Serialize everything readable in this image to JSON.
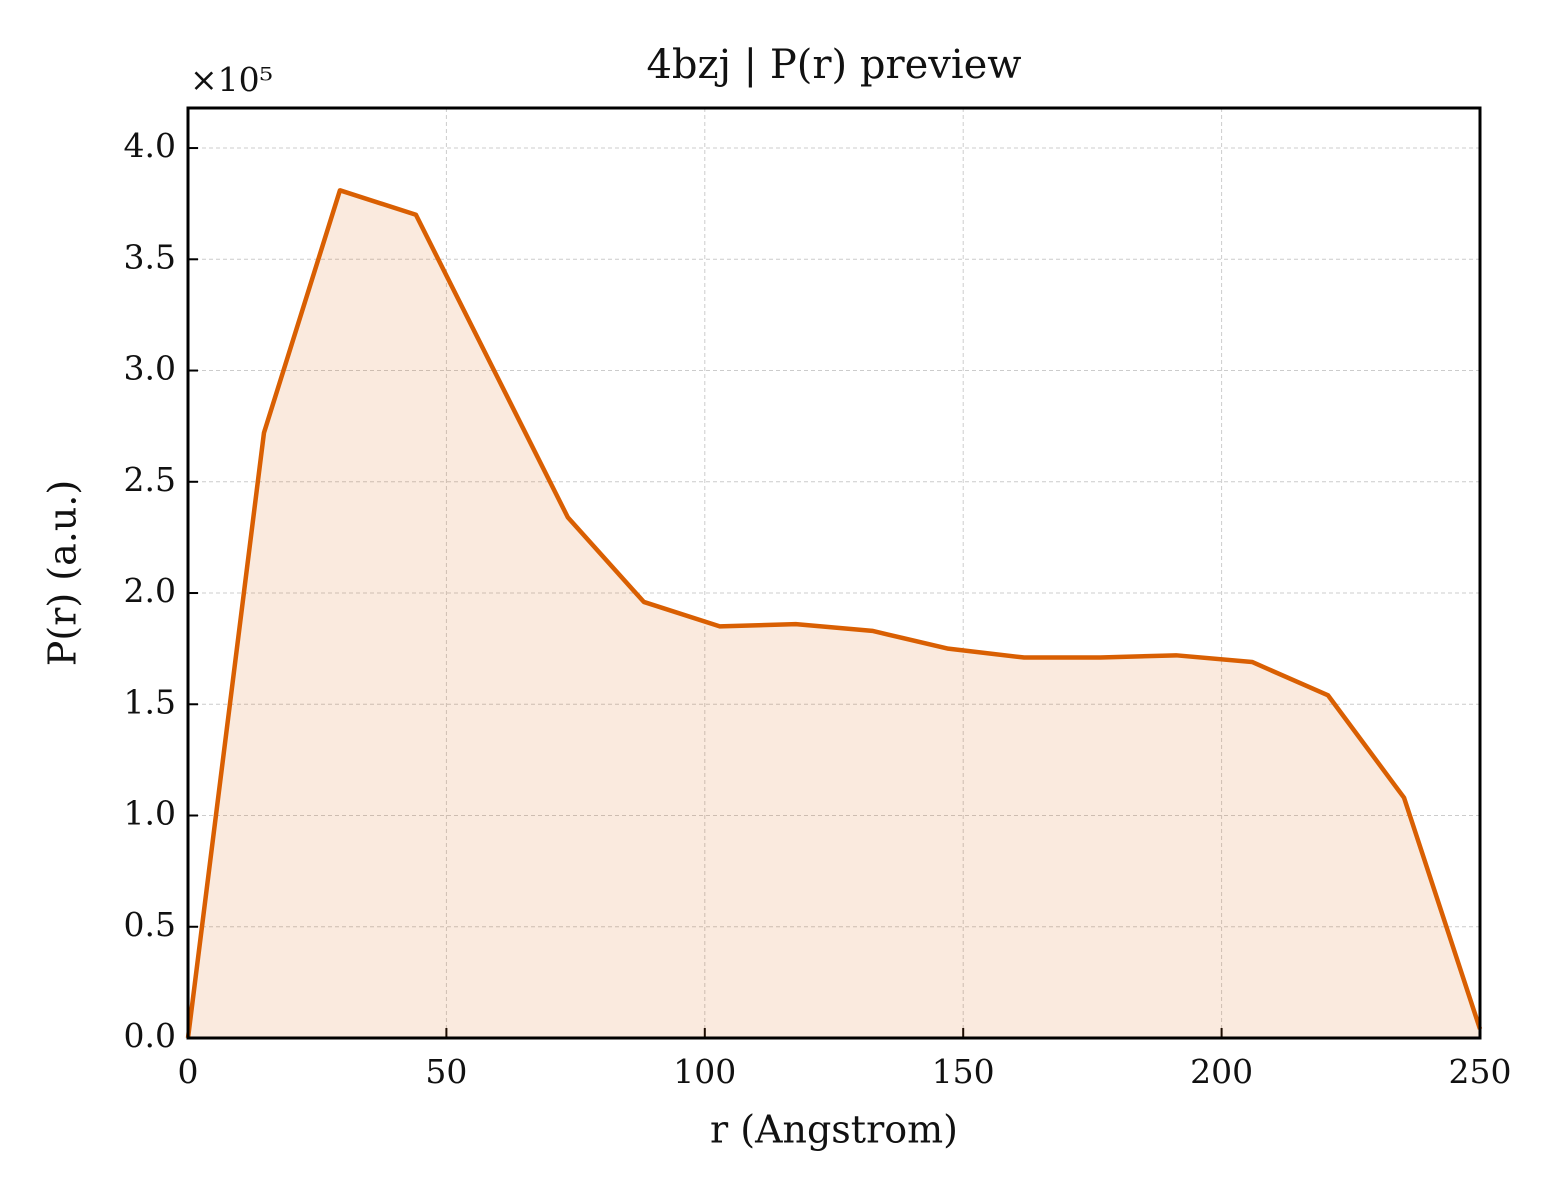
{
  "chart_data": {
    "type": "line",
    "title": "4bzj | P(r) preview",
    "xlabel": "r (Angstrom)",
    "ylabel": "P(r) (a.u.)",
    "y_offset_label": "×10⁵",
    "x": [
      0,
      14.7,
      29.4,
      44.1,
      58.8,
      73.5,
      88.2,
      102.9,
      117.6,
      132.4,
      147.1,
      161.8,
      176.5,
      191.2,
      205.9,
      220.6,
      235.3,
      250
    ],
    "series": [
      {
        "color": "#d95f02",
        "values": [
          0,
          2.72,
          3.81,
          3.7,
          3.02,
          2.34,
          1.96,
          1.85,
          1.86,
          1.83,
          1.75,
          1.71,
          1.71,
          1.72,
          1.69,
          1.54,
          1.08,
          0.04
        ]
      }
    ],
    "fill": true,
    "xlim": [
      0,
      250
    ],
    "xticks": [
      0,
      50,
      100,
      150,
      200,
      250
    ],
    "ylim": [
      0,
      4.18
    ],
    "yticks": [
      {
        "value": 0,
        "label": "0.0"
      },
      {
        "value": 0.5,
        "label": "0.5"
      },
      {
        "value": 1,
        "label": "1.0"
      },
      {
        "value": 1.5,
        "label": "1.5"
      },
      {
        "value": 2,
        "label": "2.0"
      },
      {
        "value": 2.5,
        "label": "2.5"
      },
      {
        "value": 3,
        "label": "3.0"
      },
      {
        "value": 3.5,
        "label": "3.5"
      },
      {
        "value": 4,
        "label": "4.0"
      }
    ],
    "grid": true
  }
}
